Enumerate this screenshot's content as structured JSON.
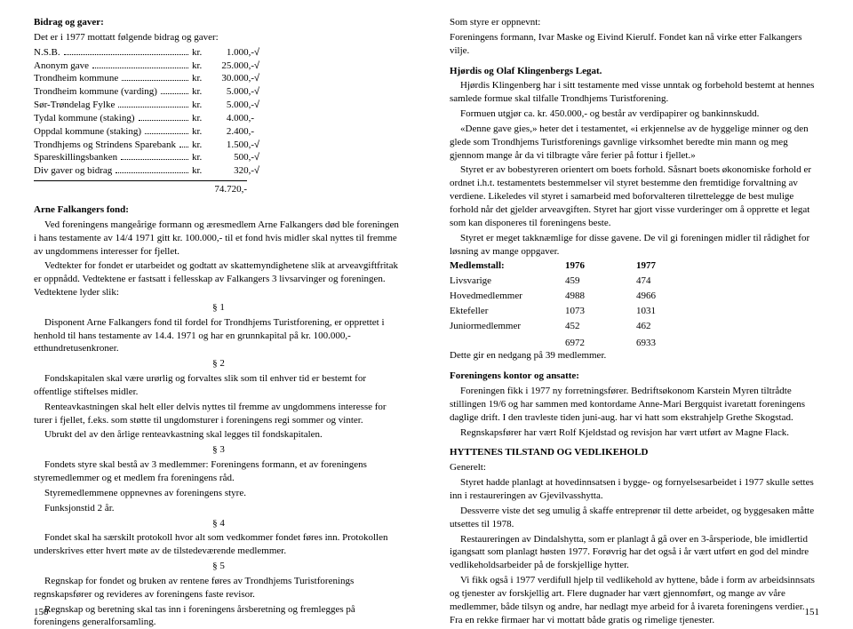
{
  "left": {
    "heading1": "Bidrag og gaver:",
    "intro": "Det er i 1977 mottatt følgende bidrag og gaver:",
    "rows": [
      {
        "label": "N.S.B.",
        "cur": "kr.",
        "val": "1.000,-",
        "mark": "√"
      },
      {
        "label": "Anonym gave",
        "cur": "kr.",
        "val": "25.000,-",
        "mark": "√"
      },
      {
        "label": "Trondheim kommune",
        "cur": "kr.",
        "val": "30.000,-",
        "mark": "√"
      },
      {
        "label": "Trondheim kommune (varding)",
        "cur": "kr.",
        "val": "5.000,-",
        "mark": "√"
      },
      {
        "label": "Sør-Trøndelag Fylke",
        "cur": "kr.",
        "val": "5.000,-",
        "mark": "√"
      },
      {
        "label": "Tydal kommune (staking)",
        "cur": "kr.",
        "val": "4.000,-",
        "mark": ""
      },
      {
        "label": "Oppdal kommune (staking)",
        "cur": "kr.",
        "val": "2.400,-",
        "mark": ""
      },
      {
        "label": "Trondhjems og Strindens Sparebank",
        "cur": "kr.",
        "val": "1.500,-",
        "mark": "√"
      },
      {
        "label": "Spareskillingsbanken",
        "cur": "kr.",
        "val": "500,-",
        "mark": "√"
      },
      {
        "label": "Div gaver og bidrag",
        "cur": "kr.",
        "val": "320,-",
        "mark": "√"
      }
    ],
    "total": "74.720,-",
    "heading2": "Arne Falkangers fond:",
    "para1": "Ved foreningens mangeårige formann og æresmedlem Arne Falkangers død ble foreningen i hans testamente av 14/4 1971 gitt kr. 100.000,- til et fond hvis midler skal nyttes til fremme av ungdommens interesser for fjellet.",
    "para2": "Vedtekter for fondet er utarbeidet og godtatt av skattemyndighetene slik at arveavgiftfritak er oppnådd. Vedtektene er fastsatt i fellesskap av Falkangers 3 livsarvinger og foreningen. Vedtektene lyder slik:",
    "s1": "§ 1",
    "s1txt": "Disponent Arne Falkangers fond til fordel for Trondhjems Turistforening, er opprettet i henhold til hans testamente av 14.4. 1971 og har en grunnkapital på kr. 100.000,- etthundretusenkroner.",
    "s2": "§ 2",
    "s2txt1": "Fondskapitalen skal være urørlig og forvaltes slik som til enhver tid er bestemt for offentlige stiftelses midler.",
    "s2txt2": "Renteavkastningen skal helt eller delvis nyttes til fremme av ungdommens interesse for turer i fjellet, f.eks. som støtte til ungdomsturer i foreningens regi sommer og vinter.",
    "s2txt3": "Ubrukt del av den årlige renteavkastning skal legges til fondskapitalen.",
    "s3": "§ 3",
    "s3txt1": "Fondets styre skal bestå av 3 medlemmer: Foreningens formann, et av foreningens styremedlemmer og et medlem fra foreningens råd.",
    "s3txt2": "Styremedlemmene oppnevnes av foreningens styre.",
    "s3txt3": "Funksjonstid 2 år.",
    "s4": "§ 4",
    "s4txt": "Fondet skal ha særskilt protokoll hvor alt som vedkommer fondet føres inn. Protokollen underskrives etter hvert møte av de tilstedeværende medlemmer.",
    "s5": "§ 5",
    "s5txt1": "Regnskap for fondet og bruken av rentene føres av Trondhjems Turistforenings regnskapsfører og revideres av foreningens faste revisor.",
    "s5txt2": "Regnskap og beretning skal tas inn i foreningens årsberetning og fremlegges på foreningens generalforsamling.",
    "pagenum": "150"
  },
  "right": {
    "styre1": "Som styre er oppnevnt:",
    "styre2": "Foreningens formann, Ivar Maske og Eivind Kierulf. Fondet kan nå virke etter Falkangers vilje.",
    "heading1": "Hjørdis og Olaf Klingenbergs Legat.",
    "p1": "Hjørdis Klingenberg har i sitt testamente med visse unntak og forbehold bestemt at hennes samlede formue skal tilfalle Trondhjems Turistforening.",
    "p2": "Formuen utgjør ca. kr. 450.000,- og består av verdipapirer og bankinnskudd.",
    "p3": "«Denne gave gies,» heter det i testamentet, «i erkjennelse av de hyggelige minner og den glede som Trondhjems Turistforenings gavnlige virksomhet beredte min mann og meg gjennom mange år da vi tilbragte våre ferier på fottur i fjellet.»",
    "p4": "Styret er av bobestyreren orientert om boets forhold. Såsnart boets økonomiske forhold er ordnet i.h.t. testamentets bestemmelser vil styret bestemme den fremtidige forvaltning av verdiene. Likeledes vil styret i samarbeid med boforvalteren tilrettelegge de best mulige forhold når det gjelder arveavgiften. Styret har gjort visse vurderinger om å opprette et legat som kan disponeres til foreningens beste.",
    "p5": "Styret er meget takknæmlige for disse gavene. De vil gi foreningen midler til rådighet for løsning av mange oppgaver.",
    "heading2": "Medlemstall:",
    "year1": "1976",
    "year2": "1977",
    "mrows": [
      {
        "label": "Livsvarige",
        "v1": "459",
        "v2": "474"
      },
      {
        "label": "Hovedmedlemmer",
        "v1": "4988",
        "v2": "4966"
      },
      {
        "label": "Ektefeller",
        "v1": "1073",
        "v2": "1031"
      },
      {
        "label": "Juniormedlemmer",
        "v1": "452",
        "v2": "462"
      }
    ],
    "mtotal1": "6972",
    "mtotal2": "6933",
    "mnote": "Dette gir en nedgang på 39 medlemmer.",
    "heading3": "Foreningens kontor og ansatte:",
    "k1": "Foreningen fikk i 1977 ny forretningsfører. Bedriftsøkonom Karstein Myren tiltrådte stillingen 19/6 og har sammen med kontordame Anne-Mari Bergquist ivaretatt foreningens daglige drift. I den travleste tiden juni-aug. har vi hatt som ekstrahjelp Grethe Skogstad.",
    "k2": "Regnskapsfører har vært Rolf Kjeldstad og revisjon har vært utført av Magne Flack.",
    "heading4": "HYTTENES TILSTAND OG VEDLIKEHOLD",
    "h0": "Generelt:",
    "h1": "Styret hadde planlagt at hovedinnsatsen i bygge- og fornyelsesarbeidet i 1977 skulle settes inn i restaureringen av Gjevilvasshytta.",
    "h2": "Dessverre viste det seg umulig å skaffe entreprenør til dette arbeidet, og byggesaken måtte utsettes til 1978.",
    "h3": "Restaureringen av Dindalshytta, som er planlagt å gå over en 3-årsperiode, ble imidlertid igangsatt som planlagt høsten 1977. Forøvrig har det også i år vært utført en god del mindre vedlikeholdsarbeider på de forskjellige hytter.",
    "h4": "Vi fikk også i 1977 verdifull hjelp til vedlikehold av hyttene, både i form av arbeidsinnsats og tjenester av forskjellig art. Flere dugnader har vært gjennomført, og mange av våre medlemmer, både tilsyn og andre, har nedlagt mye arbeid for å ivareta foreningens verdier. Fra en rekke firmaer har vi mottatt både gratis og rimelige tjenester.",
    "pagenum": "151"
  }
}
